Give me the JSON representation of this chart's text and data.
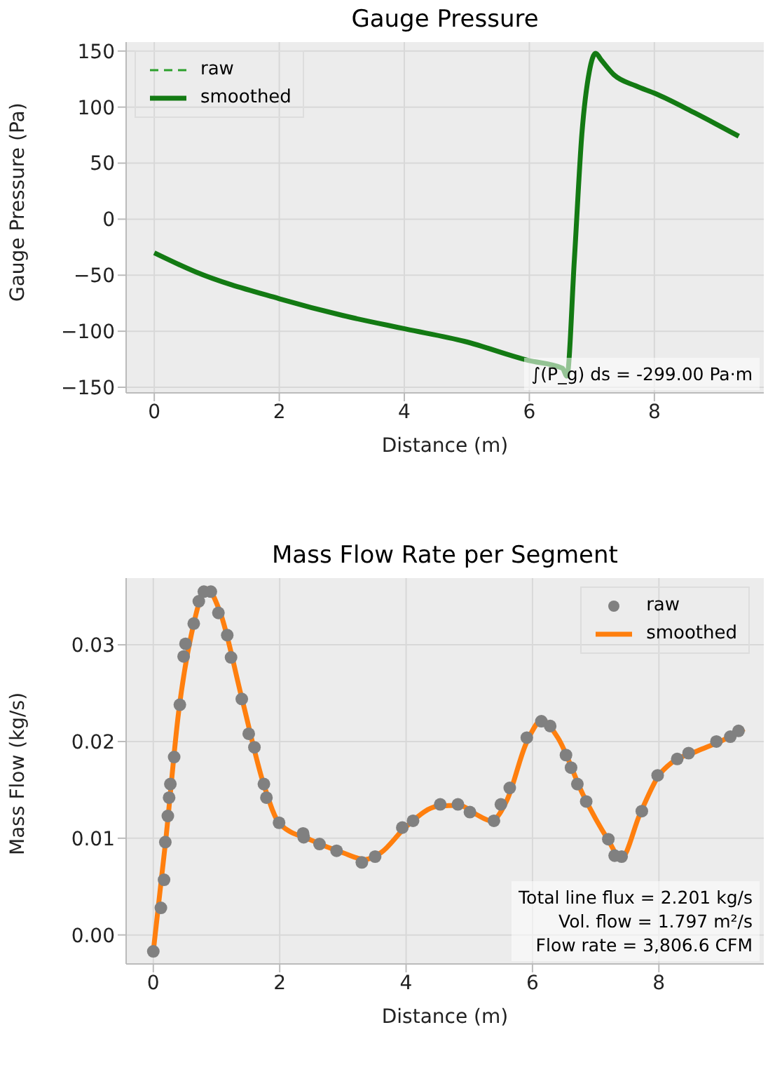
{
  "chart_data": [
    {
      "type": "line",
      "title": "Gauge Pressure",
      "xlabel": "Distance (m)",
      "ylabel": "Gauge Pressure (Pa)",
      "xlim": [
        -0.45,
        9.75
      ],
      "ylim": [
        -155,
        158
      ],
      "xticks": [
        0,
        2,
        4,
        6,
        8
      ],
      "yticks": [
        -150,
        -100,
        -50,
        0,
        50,
        100,
        150
      ],
      "grid": true,
      "legend": "top left",
      "annotations": [
        "∫(P_g) ds = -299.00 Pa·m"
      ],
      "series": [
        {
          "name": "raw",
          "color": "#2ca02c",
          "line_style": "dashed"
        },
        {
          "name": "smoothed",
          "color": "#137a13",
          "line_style": "solid",
          "x": [
            0,
            0.66,
            2,
            3.02,
            4.02,
            4.96,
            5.98,
            6.53,
            6.6,
            6.72,
            6.84,
            6.96,
            7.06,
            7.15,
            7.35,
            7.7,
            8.02,
            8.64,
            9.35
          ],
          "values": [
            -30,
            -47,
            -71,
            -86,
            -98,
            -109,
            -126,
            -133,
            -140,
            -36,
            76,
            132,
            148,
            142,
            129,
            119,
            112,
            95,
            74
          ]
        }
      ]
    },
    {
      "type": "line",
      "title": "Mass Flow Rate per Segment",
      "xlabel": "Distance (m)",
      "ylabel": "Mass Flow (kg/s)",
      "xlim": [
        -0.43,
        9.66
      ],
      "ylim": [
        -0.003,
        0.0369
      ],
      "xticks": [
        0,
        2,
        4,
        6,
        8
      ],
      "yticks": [
        {
          "value": 0,
          "label": "0.00"
        },
        0.01,
        0.02,
        0.03
      ],
      "grid": true,
      "legend": "top right",
      "annotations": [
        "Total line flux = 2.201 kg/s",
        "Vol. flow = 1.797 m²/s",
        "Flow rate = 3,806.6 CFM"
      ],
      "series": [
        {
          "name": "raw",
          "type": "scatter",
          "marker": "circle",
          "color": "#808080",
          "x": [
            0,
            0.12,
            0.17,
            0.19,
            0.23,
            0.25,
            0.27,
            0.33,
            0.42,
            0.48,
            0.51,
            0.64,
            0.72,
            0.8,
            0.91,
            1.03,
            1.17,
            1.23,
            1.4,
            1.51,
            1.6,
            1.75,
            1.79,
            1.99,
            2.37,
            2.38,
            2.63,
            2.9,
            3.3,
            3.51,
            3.94,
            4.11,
            4.54,
            4.82,
            5.01,
            5.39,
            5.5,
            5.64,
            5.91,
            6.14,
            6.28,
            6.53,
            6.61,
            6.71,
            6.85,
            7.2,
            7.3,
            7.41,
            7.73,
            7.98,
            8.29,
            8.47,
            8.91,
            9.13,
            9.26
          ],
          "values": [
            -0.0017,
            0.0028,
            0.0057,
            0.0096,
            0.0123,
            0.0142,
            0.0156,
            0.0184,
            0.0238,
            0.0288,
            0.0301,
            0.0322,
            0.0345,
            0.0355,
            0.0355,
            0.0333,
            0.031,
            0.0287,
            0.0244,
            0.0208,
            0.0194,
            0.0156,
            0.0142,
            0.0116,
            0.0105,
            0.0101,
            0.0094,
            0.0087,
            0.0075,
            0.0081,
            0.0111,
            0.0118,
            0.0135,
            0.0135,
            0.0127,
            0.0118,
            0.0135,
            0.0152,
            0.0204,
            0.0221,
            0.0216,
            0.0186,
            0.0173,
            0.0156,
            0.0138,
            0.0099,
            0.0082,
            0.0081,
            0.0128,
            0.0165,
            0.0182,
            0.0188,
            0.02,
            0.0205,
            0.0211
          ]
        },
        {
          "name": "smoothed",
          "color": "#ff7f0e",
          "x": [
            0,
            0.2,
            0.4,
            0.6,
            0.85,
            1.05,
            1.4,
            1.75,
            2.0,
            2.5,
            3.0,
            3.35,
            3.6,
            4.0,
            4.5,
            4.85,
            5.1,
            5.35,
            5.6,
            5.9,
            6.15,
            6.4,
            6.8,
            7.2,
            7.4,
            7.7,
            8.0,
            8.2,
            8.6,
            9.0,
            9.35
          ],
          "values": [
            -0.0017,
            0.01,
            0.023,
            0.031,
            0.0358,
            0.0335,
            0.0245,
            0.0155,
            0.0115,
            0.0098,
            0.0085,
            0.0078,
            0.0085,
            0.0112,
            0.0133,
            0.0134,
            0.0125,
            0.0118,
            0.014,
            0.0198,
            0.0222,
            0.0204,
            0.0145,
            0.0098,
            0.0079,
            0.0125,
            0.0165,
            0.0178,
            0.019,
            0.0201,
            0.0213
          ]
        }
      ]
    }
  ]
}
